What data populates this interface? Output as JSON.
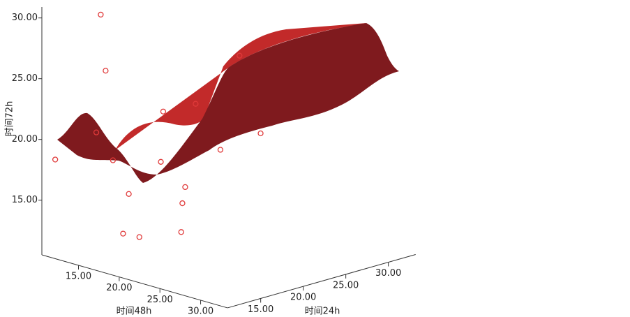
{
  "chart_data": {
    "type": "scatter3d",
    "x_label": "时间24h",
    "y_label": "时间48h",
    "z_label": "时间72h",
    "xlim": [
      11.1,
      33.2
    ],
    "ylim": [
      10.5,
      33.3
    ],
    "zlim": [
      10.5,
      30.9
    ],
    "xticks": [
      {
        "value": 15,
        "label": "15.00"
      },
      {
        "value": 20,
        "label": "20.00"
      },
      {
        "value": 25,
        "label": "25.00"
      },
      {
        "value": 30,
        "label": "30.00"
      }
    ],
    "yticks": [
      {
        "value": 15,
        "label": "15.00"
      },
      {
        "value": 20,
        "label": "20.00"
      },
      {
        "value": 25,
        "label": "25.00"
      },
      {
        "value": 30,
        "label": "30.00"
      }
    ],
    "zticks": [
      {
        "value": 15,
        "label": "15.00"
      },
      {
        "value": 20,
        "label": "20.00"
      },
      {
        "value": 25,
        "label": "25.00"
      },
      {
        "value": 30,
        "label": "30.00"
      }
    ],
    "series": [
      {
        "color": "#e03a3a",
        "x": [
          14,
          14,
          26,
          20,
          24,
          13,
          12,
          14,
          18,
          25,
          28,
          20,
          15,
          19,
          15,
          15,
          18
        ],
        "y": [
          14.7,
          15.3,
          19.2,
          16.1,
          15.9,
          15.2,
          11.2,
          16.2,
          17.9,
          17.9,
          19.7,
          18.8,
          17.1,
          19.5,
          16.4,
          18.4,
          20.4
        ],
        "z": [
          30.5,
          26.0,
          25.6,
          21.6,
          21.4,
          21.1,
          18.3,
          18.8,
          18.2,
          17.8,
          18.9,
          15.9,
          16.0,
          14.9,
          12.6,
          12.7,
          12.9
        ]
      }
    ]
  }
}
